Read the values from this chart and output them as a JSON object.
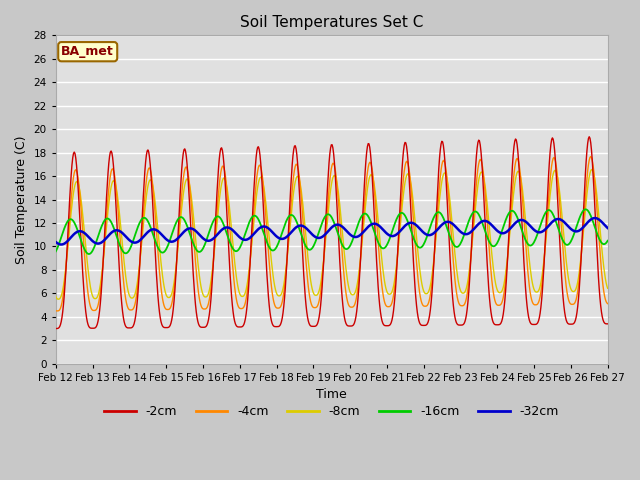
{
  "title": "Soil Temperatures Set C",
  "xlabel": "Time",
  "ylabel": "Soil Temperature (C)",
  "ylim": [
    0,
    28
  ],
  "yticks": [
    0,
    2,
    4,
    6,
    8,
    10,
    12,
    14,
    16,
    18,
    20,
    22,
    24,
    26,
    28
  ],
  "x_labels": [
    "Feb 12",
    "Feb 13",
    "Feb 14",
    "Feb 15",
    "Feb 16",
    "Feb 17",
    "Feb 18",
    "Feb 19",
    "Feb 20",
    "Feb 21",
    "Feb 22",
    "Feb 23",
    "Feb 24",
    "Feb 25",
    "Feb 26",
    "Feb 27"
  ],
  "colors": {
    "-2cm": "#cc0000",
    "-4cm": "#ff8800",
    "-8cm": "#ddcc00",
    "-16cm": "#00cc00",
    "-32cm": "#0000cc"
  },
  "legend_label": "BA_met",
  "bg_color": "#e0e0e0",
  "grid_color": "#ffffff",
  "annotation_box_color": "#ffffcc",
  "annotation_text_color": "#880000"
}
